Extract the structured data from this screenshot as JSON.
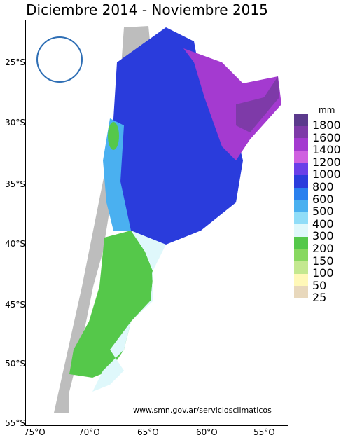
{
  "title": "Diciembre 2014 - Noviembre 2015",
  "url": "www.smn.gov.ar/serviciosclimaticos",
  "legend": {
    "unit": "mm",
    "items": [
      {
        "label": "1800",
        "color": "#5b3a8c"
      },
      {
        "label": "1600",
        "color": "#7e3aa8"
      },
      {
        "label": "1400",
        "color": "#a43ad0"
      },
      {
        "label": "1200",
        "color": "#cf60e0"
      },
      {
        "label": "1000",
        "color": "#6a3fe8"
      },
      {
        "label": "800",
        "color": "#2a3cdc"
      },
      {
        "label": "600",
        "color": "#2a80ee"
      },
      {
        "label": "500",
        "color": "#4ab0f0"
      },
      {
        "label": "400",
        "color": "#90ddf8"
      },
      {
        "label": "300",
        "color": "#dff8fb"
      },
      {
        "label": "200",
        "color": "#55c84a"
      },
      {
        "label": "150",
        "color": "#88d860"
      },
      {
        "label": "100",
        "color": "#c4e890"
      },
      {
        "label": "50",
        "color": "#fff8b8"
      },
      {
        "label": "25",
        "color": "#e8d8bc"
      }
    ],
    "extra_bottom_label": ""
  },
  "lat_labels": [
    "25°S",
    "30°S",
    "35°S",
    "40°S",
    "45°S",
    "50°S",
    "55°S"
  ],
  "lon_labels": [
    "75°O",
    "70°O",
    "65°O",
    "60°O",
    "55°O"
  ]
}
